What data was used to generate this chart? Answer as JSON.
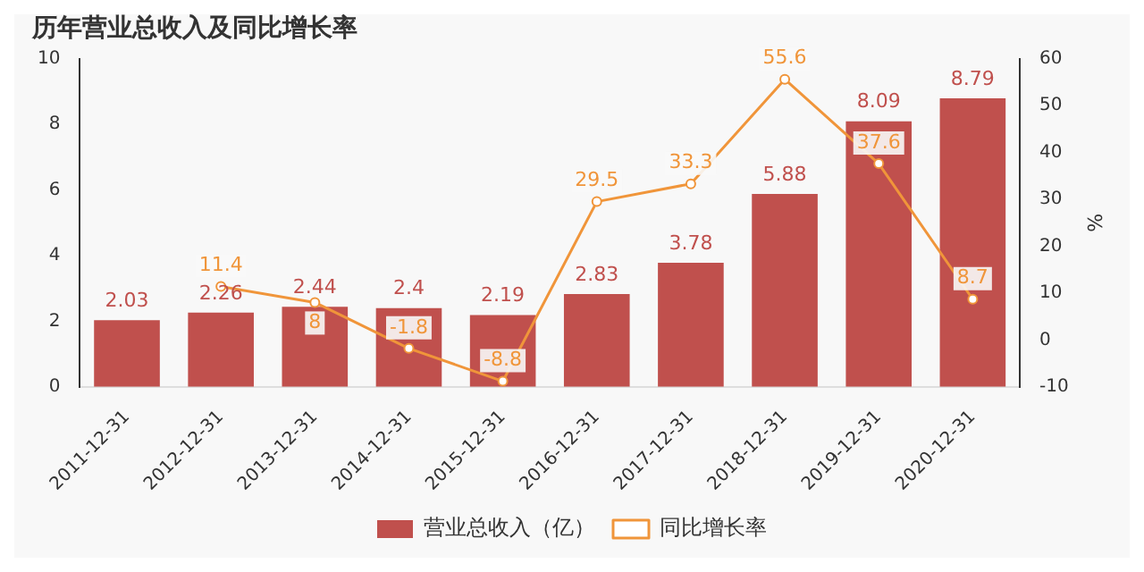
{
  "chart_data": {
    "type": "bar",
    "title": "历年营业总收入及同比增长率",
    "y2label": "%",
    "categories": [
      "2011-12-31",
      "2012-12-31",
      "2013-12-31",
      "2014-12-31",
      "2015-12-31",
      "2016-12-31",
      "2017-12-31",
      "2018-12-31",
      "2019-12-31",
      "2020-12-31"
    ],
    "series": [
      {
        "name": "营业总收入（亿）",
        "color": "#c0504d",
        "values": [
          2.03,
          2.26,
          2.44,
          2.4,
          2.19,
          2.83,
          3.78,
          5.88,
          8.09,
          8.79
        ]
      },
      {
        "name": "同比增长率",
        "type": "line",
        "axis": "y2",
        "color": "#f0953a",
        "marker": "circle",
        "values": [
          null,
          11.4,
          8,
          -1.8,
          -8.8,
          29.5,
          33.3,
          55.6,
          37.6,
          8.7
        ]
      }
    ],
    "ylim": [
      0,
      10
    ],
    "yticks": [
      0,
      2,
      4,
      6,
      8,
      10
    ],
    "y2lim": [
      -10,
      60
    ],
    "y2ticks": [
      -10,
      0,
      10,
      20,
      30,
      40,
      50,
      60
    ],
    "data_labels": true,
    "grid": false,
    "legend": "bottom"
  }
}
